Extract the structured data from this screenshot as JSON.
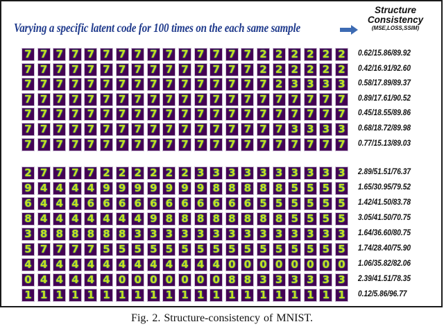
{
  "figure": {
    "headline": "Varying a specific latent code for 100 times on the each same sample",
    "arrow_color": "#3d6bb3",
    "metric_header": {
      "title_line1": "Structure",
      "title_line2": "Consistency",
      "subtitle": "(MSE,LOSS,SSIM)"
    },
    "tile_colors": {
      "background": "#440154",
      "stroke": "#c8e020",
      "glow": "#35b779"
    },
    "blocks": [
      {
        "rows": [
          {
            "digits": "777777777777777222222",
            "metric": "0.62/15.86/89.92"
          },
          {
            "digits": "777777777777777222222",
            "metric": "0.42/16.91/92.60"
          },
          {
            "digits": "777777777777777723333",
            "metric": "0.58/17.89/89.37"
          },
          {
            "digits": "777777777777777777777",
            "metric": "0.89/17.61/90.52"
          },
          {
            "digits": "777777777777777777777",
            "metric": "0.45/18.55/89.86"
          },
          {
            "digits": "777777777777777773333",
            "metric": "0.68/18.72/89.98"
          },
          {
            "digits": "777777777777777777777",
            "metric": "0.77/15.13/89.03"
          }
        ]
      },
      {
        "rows": [
          {
            "digits": "277772222223333333333",
            "metric": "2.89/51.51/76.37"
          },
          {
            "digits": "944449999999888885555",
            "metric": "1.65/30.95/79.52"
          },
          {
            "digits": "644466666666666555555",
            "metric": "1.42/41.50/83.78"
          },
          {
            "digits": "844444449888888885555",
            "metric": "3.05/41.50/70.75"
          },
          {
            "digits": "388888833333333333333",
            "metric": "1.64/36.60/80.75"
          },
          {
            "digits": "577775555555555555555",
            "metric": "1.74/28.40/75.90"
          },
          {
            "digits": "444444444444400000000",
            "metric": "1.06/35.82/82.06"
          },
          {
            "digits": "044444000000088333333",
            "metric": "2.39/41.51/78.35"
          },
          {
            "digits": "111111111111111111111",
            "metric": "0.12/5.86/96.77"
          }
        ]
      }
    ],
    "caption": "Fig. 2.    Structure-consistency of MNIST."
  }
}
